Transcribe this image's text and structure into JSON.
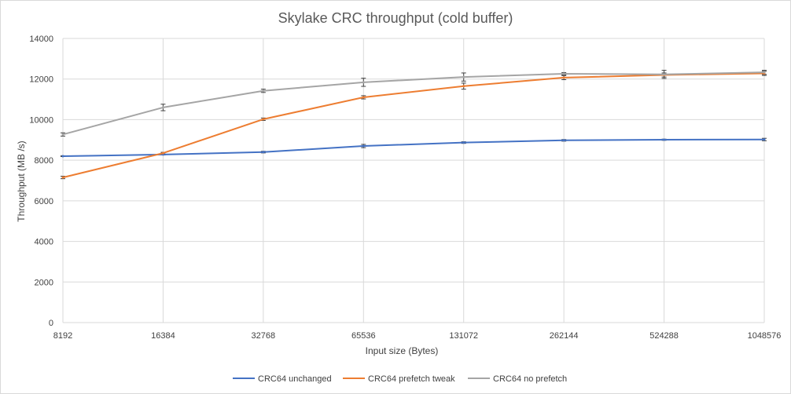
{
  "chart_data": {
    "type": "line",
    "title": "Skylake CRC throughput (cold buffer)",
    "xlabel": "Input size (Bytes)",
    "ylabel": "Throughput (MB /s)",
    "categories": [
      "8192",
      "16384",
      "32768",
      "65536",
      "131072",
      "262144",
      "524288",
      "1048576"
    ],
    "ylim": [
      0,
      14000
    ],
    "yticks": [
      "0",
      "2000",
      "4000",
      "6000",
      "8000",
      "10000",
      "12000",
      "14000"
    ],
    "grid": true,
    "legend_position": "bottom",
    "error_bars": true,
    "series": [
      {
        "name": "CRC64 unchanged",
        "color": "#4472c4",
        "values": [
          8200,
          8280,
          8400,
          8700,
          8870,
          8980,
          9010,
          9020
        ],
        "errors": [
          20,
          20,
          40,
          80,
          40,
          40,
          30,
          60
        ]
      },
      {
        "name": "CRC64 prefetch tweak",
        "color": "#ed7d31",
        "values": [
          7150,
          8350,
          10020,
          11100,
          11650,
          12070,
          12200,
          12280
        ],
        "errors": [
          60,
          40,
          60,
          80,
          150,
          100,
          100,
          100
        ]
      },
      {
        "name": "CRC64 no prefetch",
        "color": "#a5a5a5",
        "values": [
          9270,
          10600,
          11420,
          11840,
          12100,
          12260,
          12230,
          12330
        ],
        "errors": [
          80,
          160,
          80,
          200,
          200,
          60,
          200,
          100
        ]
      }
    ]
  }
}
